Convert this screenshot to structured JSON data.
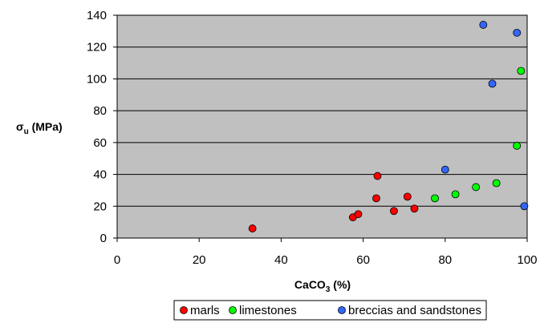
{
  "chart_data": {
    "type": "scatter",
    "xlabel": {
      "main": "CaCO",
      "sub": "3",
      "unit": " (%)"
    },
    "ylabel": {
      "main": "σ",
      "sub": "u",
      "unit": " (MPa)"
    },
    "xlim": [
      0,
      100
    ],
    "ylim": [
      0,
      140
    ],
    "xticks": [
      0,
      20,
      40,
      60,
      80,
      100
    ],
    "yticks": [
      0,
      20,
      40,
      60,
      80,
      100,
      120,
      140
    ],
    "grid": "horizontal",
    "plot_background": "#c0c0c0",
    "legend_position": "bottom-center",
    "series": [
      {
        "name": "marls",
        "color": "#ff0000",
        "points": [
          [
            33,
            6
          ],
          [
            57.5,
            13
          ],
          [
            58.8,
            15
          ],
          [
            63.2,
            25
          ],
          [
            63.5,
            39
          ],
          [
            67.5,
            17
          ],
          [
            70.8,
            26
          ],
          [
            72.5,
            18.5
          ]
        ]
      },
      {
        "name": "limestones",
        "color": "#00ff00",
        "points": [
          [
            77.5,
            25
          ],
          [
            82.5,
            27.5
          ],
          [
            87.5,
            32
          ],
          [
            92.5,
            34.5
          ],
          [
            97.5,
            58
          ],
          [
            98.5,
            105
          ]
        ]
      },
      {
        "name": "breccias and sandstones",
        "color": "#3366ff",
        "points": [
          [
            80,
            43
          ],
          [
            89.3,
            134
          ],
          [
            91.5,
            97
          ],
          [
            97.5,
            129
          ],
          [
            99.3,
            20
          ]
        ]
      }
    ]
  }
}
